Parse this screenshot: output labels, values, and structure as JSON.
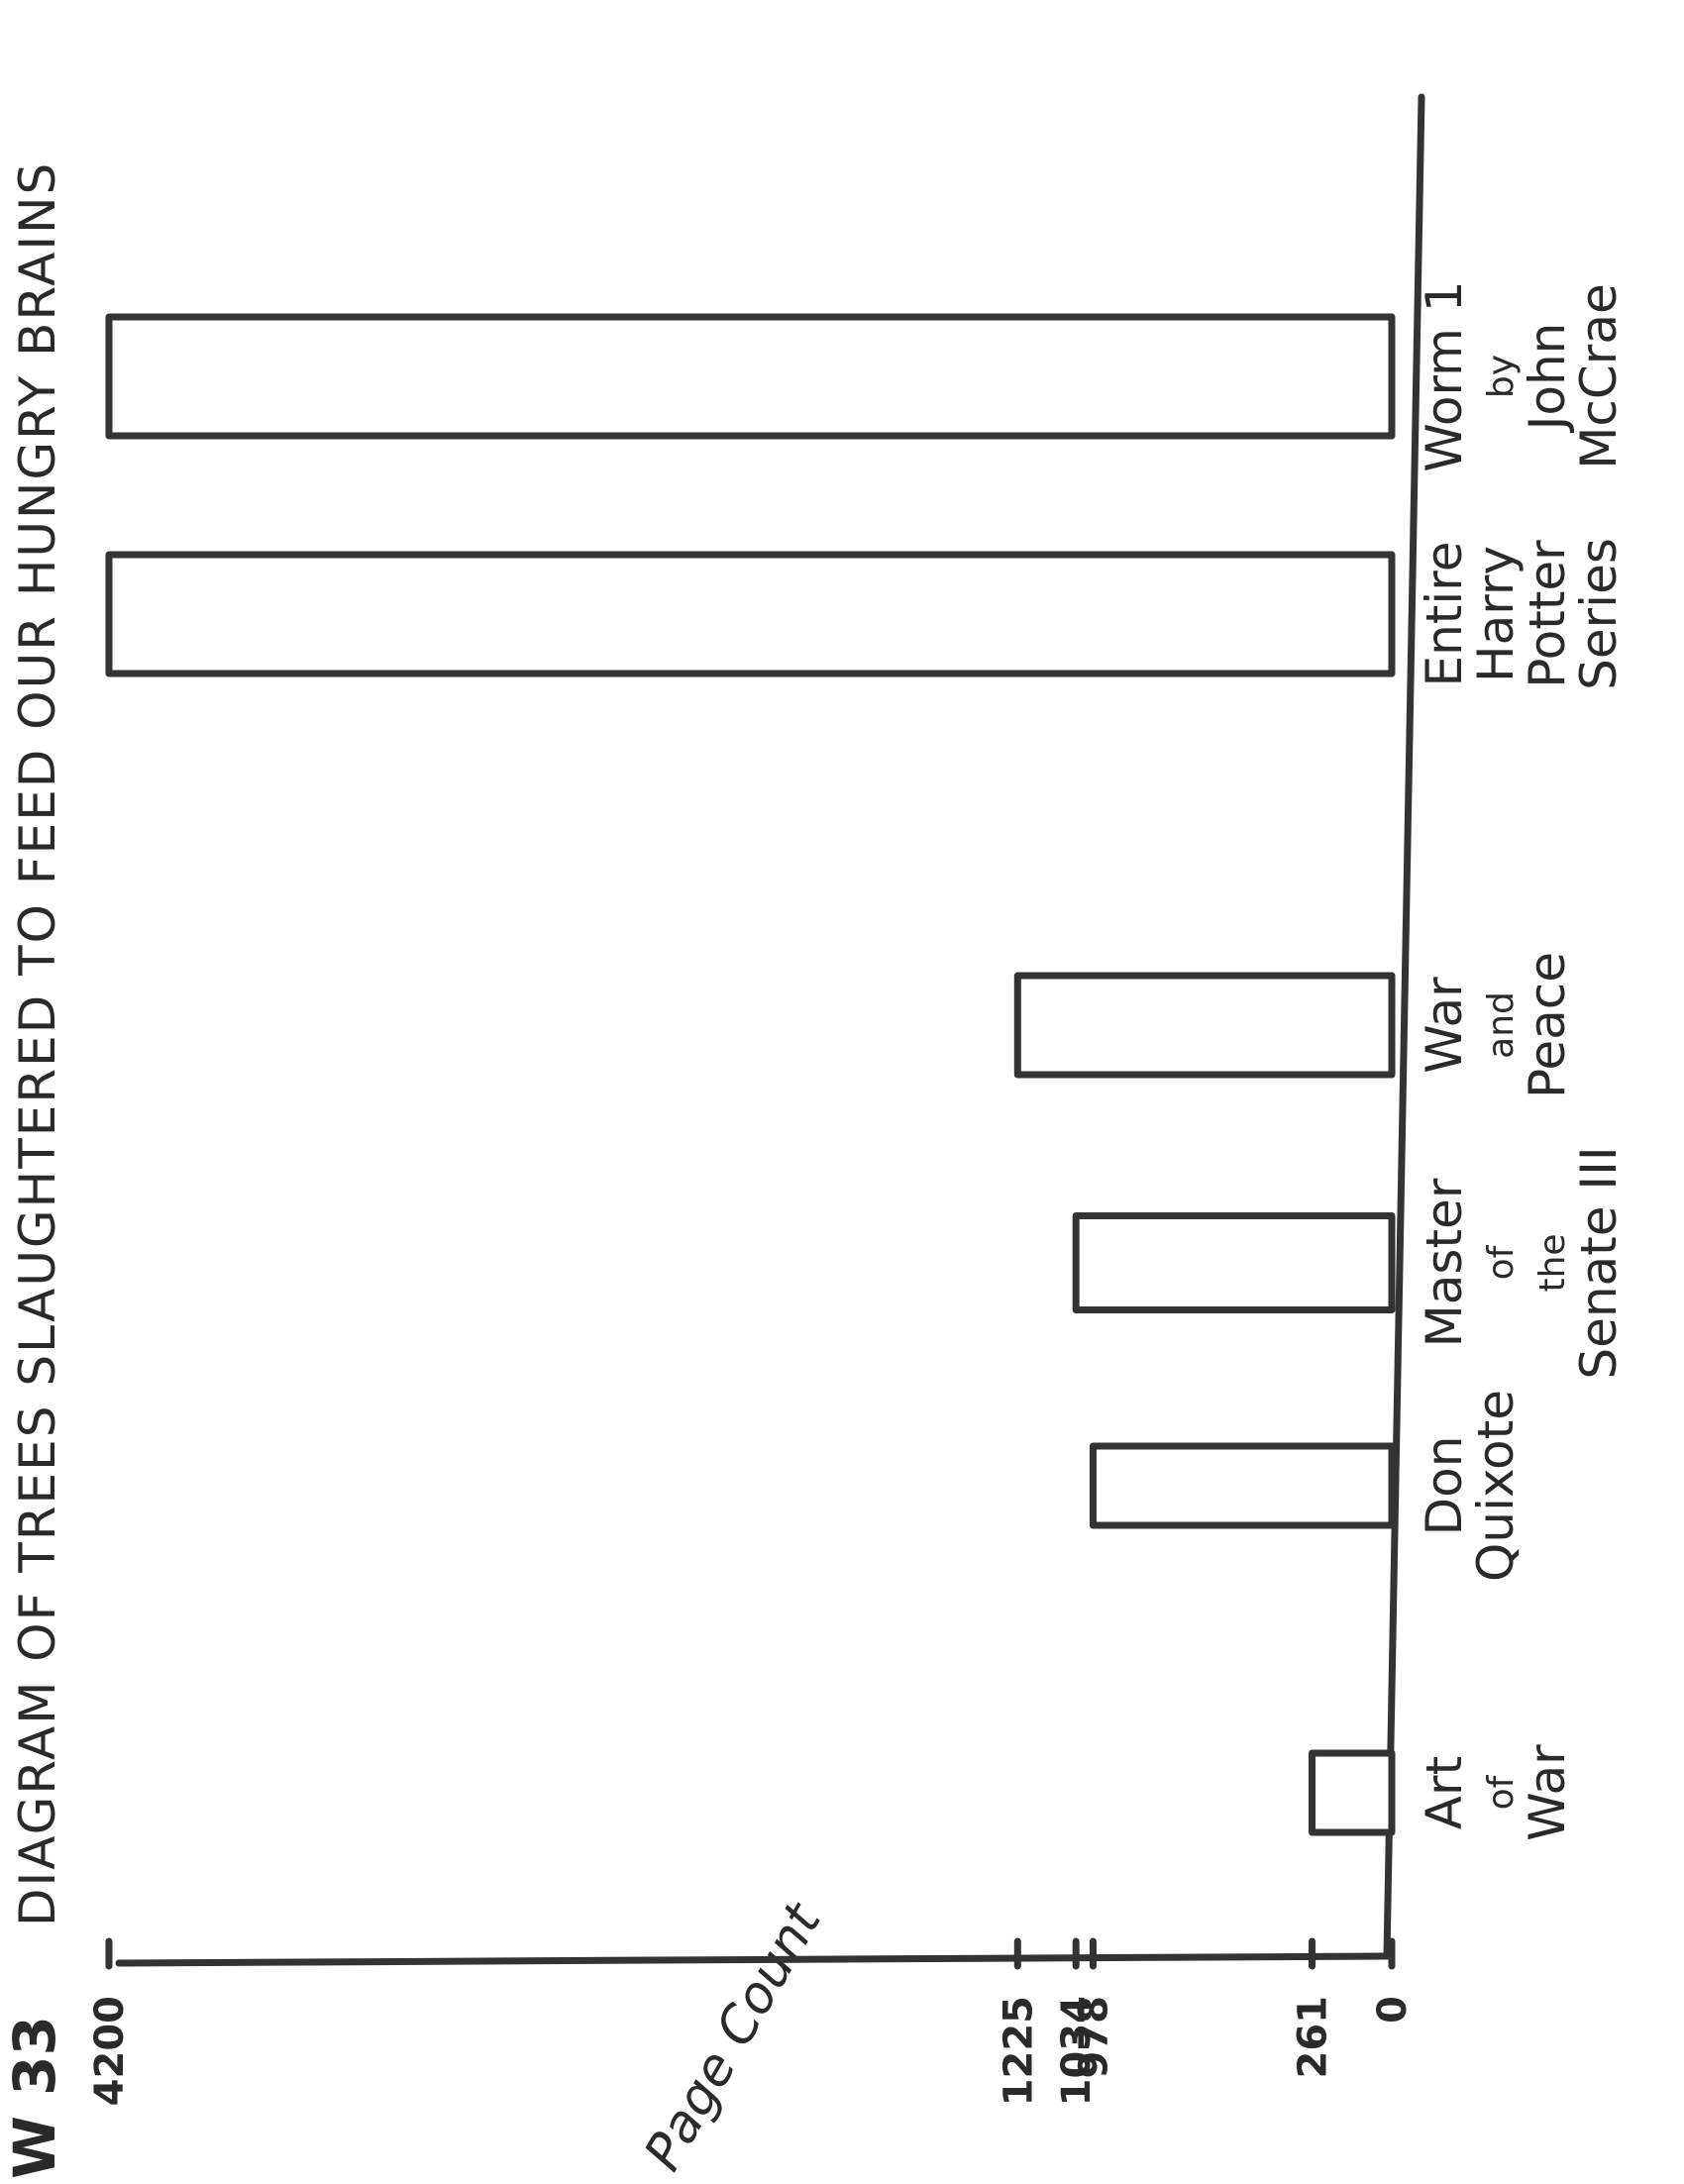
{
  "figure_number": "W 33",
  "chart_data": {
    "type": "bar",
    "orientation": "horizontal",
    "title": "DIAGRAM OF TREES SLAUGHTERED TO FEED OUR HUNGRY BRAINS",
    "ylabel": "Page Count",
    "xlabel": "",
    "categories": [
      [
        "Art",
        "of",
        "War"
      ],
      [
        "Don",
        "Quixote"
      ],
      [
        "Master",
        "of",
        "the",
        "Senate III"
      ],
      [
        "War",
        "and",
        "Peace"
      ],
      [
        "Entire",
        "Harry",
        "Potter",
        "Series"
      ],
      [
        "Worm 1",
        "by",
        "John",
        "McCrae"
      ]
    ],
    "values": [
      261,
      978,
      1034,
      1225,
      4200,
      4200
    ],
    "tick_labels": [
      "0",
      "261",
      "978",
      "1034",
      "1225",
      "4200"
    ],
    "tick_values": [
      0,
      261,
      978,
      1034,
      1225,
      4200
    ],
    "ylim": [
      0,
      4200
    ],
    "grid": false,
    "legend": "none"
  }
}
